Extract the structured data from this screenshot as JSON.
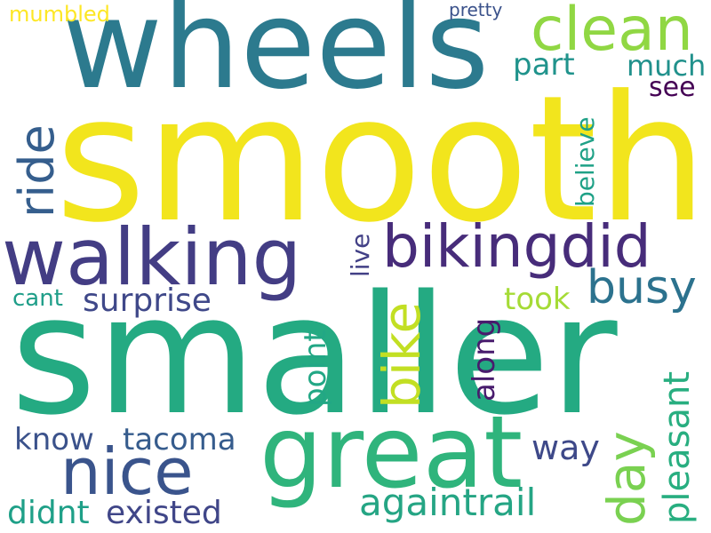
{
  "words": [
    {
      "text": "smooth",
      "color": "#f2e51d",
      "vertical": false
    },
    {
      "text": "smaller",
      "color": "#24aa82",
      "vertical": false
    },
    {
      "text": "wheels",
      "color": "#2c7a8e",
      "vertical": false
    },
    {
      "text": "great",
      "color": "#2fb47c",
      "vertical": false
    },
    {
      "text": "walking",
      "color": "#433d84",
      "vertical": false
    },
    {
      "text": "bikingdid",
      "color": "#472c7a",
      "vertical": false
    },
    {
      "text": "clean",
      "color": "#90d743",
      "vertical": false
    },
    {
      "text": "nice",
      "color": "#3a548c",
      "vertical": false
    },
    {
      "text": "bike",
      "color": "#c2df23",
      "vertical": true
    },
    {
      "text": "ride",
      "color": "#355e8d",
      "vertical": true
    },
    {
      "text": "day",
      "color": "#7ad151",
      "vertical": true
    },
    {
      "text": "busy",
      "color": "#2c728e",
      "vertical": false
    },
    {
      "text": "againtrail",
      "color": "#25a584",
      "vertical": false
    },
    {
      "text": "pleasant",
      "color": "#28ae80",
      "vertical": true
    },
    {
      "text": "know",
      "color": "#3b528b",
      "vertical": false
    },
    {
      "text": "tacoma",
      "color": "#365c8d",
      "vertical": false
    },
    {
      "text": "existed",
      "color": "#404688",
      "vertical": false
    },
    {
      "text": "didnt",
      "color": "#1fa088",
      "vertical": false
    },
    {
      "text": "surprise",
      "color": "#3f4889",
      "vertical": false
    },
    {
      "text": "point",
      "color": "#22a785",
      "vertical": true
    },
    {
      "text": "along",
      "color": "#481b6d",
      "vertical": true
    },
    {
      "text": "took",
      "color": "#a5db36",
      "vertical": false
    },
    {
      "text": "way",
      "color": "#3e4989",
      "vertical": false
    },
    {
      "text": "part",
      "color": "#20938c",
      "vertical": false
    },
    {
      "text": "much",
      "color": "#21918c",
      "vertical": false
    },
    {
      "text": "see",
      "color": "#440154",
      "vertical": false
    },
    {
      "text": "believe",
      "color": "#1fa187",
      "vertical": true
    },
    {
      "text": "live",
      "color": "#424086",
      "vertical": true
    },
    {
      "text": "cant",
      "color": "#1f9e89",
      "vertical": false
    },
    {
      "text": "mumbled",
      "color": "#fde725",
      "vertical": false
    },
    {
      "text": "pretty",
      "color": "#3b528b",
      "vertical": false
    }
  ]
}
